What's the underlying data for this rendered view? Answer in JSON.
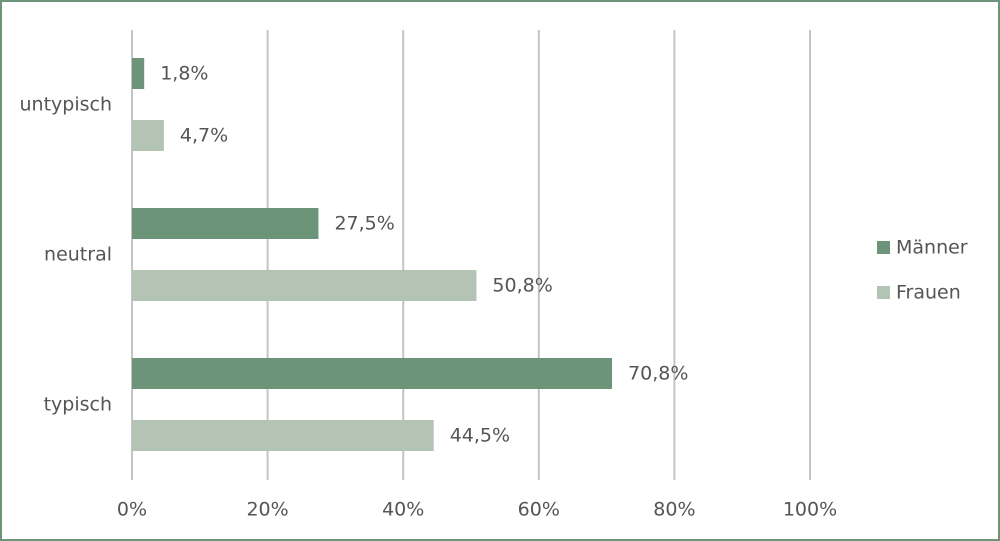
{
  "chart_data": {
    "type": "bar",
    "orientation": "horizontal",
    "categories": [
      "untypisch",
      "neutral",
      "typisch"
    ],
    "series": [
      {
        "name": "Männer",
        "color": "#6b9478",
        "values": [
          1.8,
          27.5,
          70.8
        ],
        "value_labels": [
          "1,8%",
          "27,5%",
          "70,8%"
        ]
      },
      {
        "name": "Frauen",
        "color": "#b3c4b5",
        "values": [
          4.7,
          50.8,
          44.5
        ],
        "value_labels": [
          "4,7%",
          "50,8%",
          "44,5%"
        ]
      }
    ],
    "xlim": [
      0,
      100
    ],
    "xticks": [
      {
        "value": 0,
        "label": "0%"
      },
      {
        "value": 20,
        "label": "20%"
      },
      {
        "value": 40,
        "label": "40%"
      },
      {
        "value": 60,
        "label": "60%"
      },
      {
        "value": 80,
        "label": "80%"
      },
      {
        "value": 100,
        "label": "100%"
      }
    ],
    "grid": true,
    "legend": "right"
  }
}
